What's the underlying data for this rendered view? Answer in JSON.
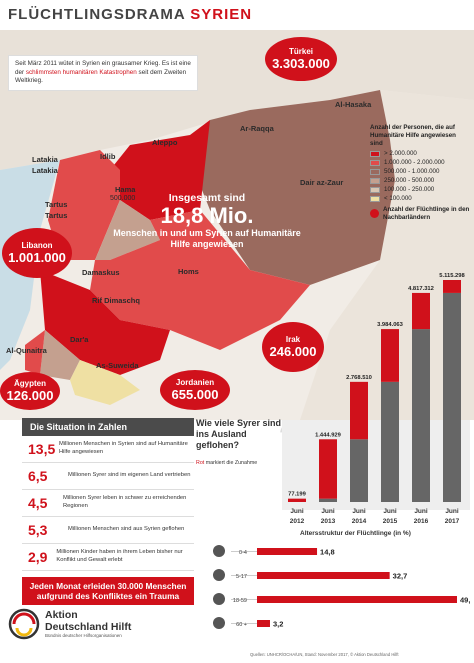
{
  "header": {
    "title_main": "FLÜCHTLINGSDRAMA",
    "title_accent": "SYRIEN"
  },
  "intro": {
    "line_a": "Seit März 2011 wütet in Syrien ein grausamer Krieg. Es ist eine der ",
    "highlight": "schlimmsten humanitären Katastrophen",
    "line_b": " seit dem Zweiten Weltkrieg."
  },
  "bubbles": {
    "tuerkei": {
      "name": "Türkei",
      "value": "3.303.000"
    },
    "libanon": {
      "name": "Libanon",
      "value": "1.001.000"
    },
    "irak": {
      "name": "Irak",
      "value": "246.000"
    },
    "jordanien": {
      "name": "Jordanien",
      "value": "655.000"
    },
    "aegypten": {
      "name": "Ägypten",
      "value": "126.000"
    }
  },
  "regions": {
    "al_hasaka": "Al-Hasaka",
    "ar_raqqa": "Ar-Raqqa",
    "aleppo": "Aleppo",
    "idlib": "Idlib",
    "latakia": "Latakia",
    "hama": "Hama",
    "hama_value": "500.000",
    "tartus": "Tartus",
    "dair": "Dair az-Zaur",
    "homs": "Homs",
    "damaskus": "Damaskus",
    "rif": "Rif Dimaschq",
    "al_qunaitra": "Al-Qunaitra",
    "dara": "Dar'a",
    "as_suweida": "As-Suweida"
  },
  "legend": {
    "title": "Anzahl der Personen, die auf Humanitäre Hilfe angewiesen sind",
    "items": [
      {
        "label": "> 2.000.000",
        "color": "#d0111b"
      },
      {
        "label": "1.000.000 - 2.000.000",
        "color": "#e14b4b"
      },
      {
        "label": "500.000 - 1.000.000",
        "color": "#9a6a5e"
      },
      {
        "label": "250.000 - 500.000",
        "color": "#c4a08f"
      },
      {
        "label": "100.000 - 250.000",
        "color": "#d9c6b2"
      },
      {
        "label": "< 100.000",
        "color": "#efe0a3"
      }
    ],
    "refugee_label": "Anzahl der Flüchtlinge in den Nachbarländern"
  },
  "center_msg": {
    "line1": "Insgesamt sind",
    "line2": "18,8 Mio.",
    "line3": "Menschen in und um Syrien auf Humanitäre Hilfe angewiesen"
  },
  "facts": {
    "heading": "Die Situation in Zahlen",
    "items": [
      {
        "num": "13,5",
        "text": "Millionen Menschen in Syrien sind auf Humanitäre Hilfe angewiesen"
      },
      {
        "num": "6,5",
        "text": "Millionen Syrer sind im eigenen Land vertrieben"
      },
      {
        "num": "4,5",
        "text": "Millionen Syrer leben in schwer zu erreichenden Regionen"
      },
      {
        "num": "5,3",
        "text": "Millionen Menschen sind aus Syrien geflohen"
      },
      {
        "num": "2,9",
        "text": "Millionen Kinder haben in ihrem Leben bisher nur Konflikt und Gewalt erlebt"
      }
    ],
    "red_box": "Jeden Monat erleiden 30.000 Menschen aufgrund des Konfliktes ein Trauma"
  },
  "question": {
    "text": "Wie viele Syrer sind ins Ausland geflohen?",
    "note_red": "Rot",
    "note_rest": " markiert die Zunahme"
  },
  "chart_data": [
    {
      "type": "bar",
      "categories": [
        "Juni 2012",
        "Juni 2013",
        "Juni 2014",
        "Juni 2015",
        "Juni 2016",
        "Juni 2017"
      ],
      "values": [
        77199,
        1444929,
        2768510,
        3984063,
        4817312,
        5115298
      ],
      "value_labels": [
        "77.199",
        "1.444.929",
        "2.768.510",
        "3.984.063",
        "4.817.312",
        "5.115.298"
      ],
      "xlabel_top": [
        "Juni",
        "Juni",
        "Juni",
        "Juni",
        "Juni",
        "Juni"
      ],
      "xlabel_bottom": [
        "2012",
        "2013",
        "2014",
        "2015",
        "2016",
        "2017"
      ],
      "ylim": [
        0,
        5115298
      ],
      "colors": {
        "base": "#666666",
        "increase": "#d0111b"
      }
    },
    {
      "type": "bar",
      "orientation": "horizontal",
      "title": "Altersstruktur der Flüchtlinge",
      "unit": "(in %)",
      "categories": [
        "0-4",
        "5-17",
        "18-59",
        "60 +"
      ],
      "values": [
        14.8,
        32.7,
        49.3,
        3.2
      ],
      "value_labels": [
        "14,8",
        "32,7",
        "49,3",
        "3,2"
      ],
      "xlim": [
        0,
        49.3
      ],
      "color": "#d0111b"
    }
  ],
  "logo": {
    "name_line1": "Aktion",
    "name_line2": "Deutschland Hilft",
    "sub": "Bündnis deutscher Hilfsorganisationen"
  },
  "sources": "Quellen: UNHCR/OCHA/UN, Stand: November 2017, © Aktion Deutschland Hilft"
}
